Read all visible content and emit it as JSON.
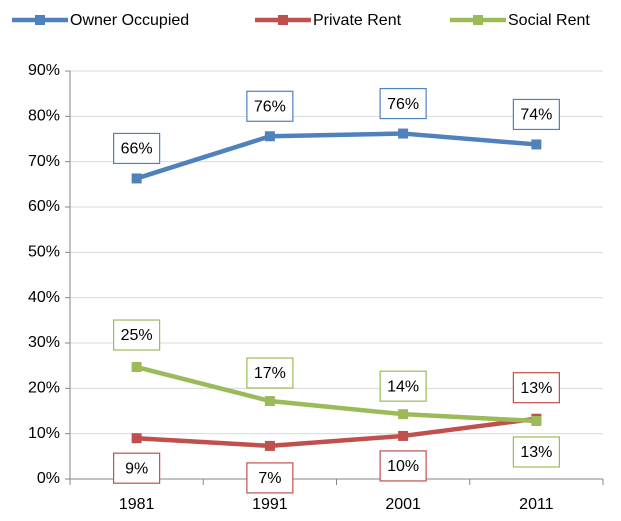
{
  "chart_data": {
    "type": "line",
    "categories": [
      "1981",
      "1991",
      "2001",
      "2011"
    ],
    "series": [
      {
        "name": "Owner Occupied",
        "color": "#4f81bd",
        "values": [
          66.3,
          75.6,
          76.2,
          73.8
        ],
        "value_labels": [
          "66%",
          "76%",
          "76%",
          "74%"
        ]
      },
      {
        "name": "Private Rent",
        "color": "#c0504d",
        "values": [
          9.0,
          7.3,
          9.5,
          13.3
        ],
        "value_labels": [
          "9%",
          "7%",
          "10%",
          "13%"
        ]
      },
      {
        "name": "Social Rent",
        "color": "#9bbb59",
        "values": [
          24.7,
          17.2,
          14.3,
          12.8
        ],
        "value_labels": [
          "25%",
          "17%",
          "14%",
          "13%"
        ]
      }
    ],
    "ylim": [
      0,
      90
    ],
    "yticks": [
      {
        "value": 0,
        "label": "0%"
      },
      {
        "value": 10,
        "label": "10%"
      },
      {
        "value": 20,
        "label": "20%"
      },
      {
        "value": 30,
        "label": "30%"
      },
      {
        "value": 40,
        "label": "40%"
      },
      {
        "value": 50,
        "label": "50%"
      },
      {
        "value": 60,
        "label": "60%"
      },
      {
        "value": 70,
        "label": "70%"
      },
      {
        "value": 80,
        "label": "80%"
      },
      {
        "value": 90,
        "label": "90%"
      }
    ],
    "grid": true,
    "legend": "top"
  }
}
